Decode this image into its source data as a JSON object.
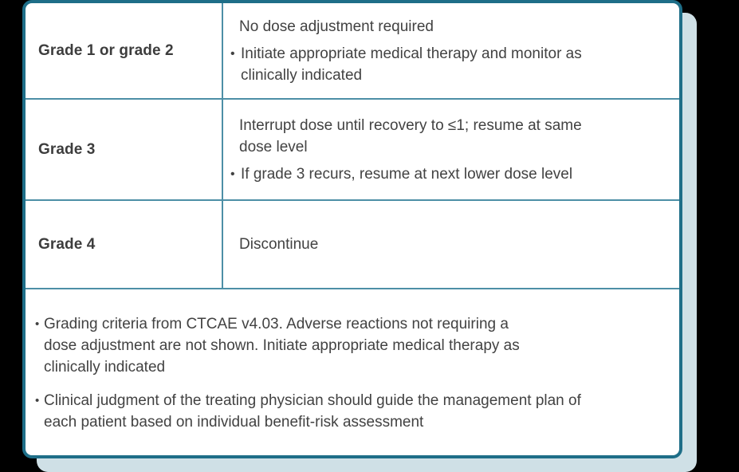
{
  "colors": {
    "background": "#000000",
    "card_background": "#ffffff",
    "card_border": "#1e6e88",
    "divider": "#4d8fa6",
    "shadow": "#cfe0e6",
    "text": "#424242",
    "label_text": "#3d3d3d"
  },
  "bullet_char": "•",
  "card": {
    "table": {
      "rows": [
        {
          "grade": "Grade 1 or grade 2",
          "lead": "No dose adjustment required",
          "bullets": [
            "Initiate appropriate medical therapy and monitor as\nclinically indicated"
          ]
        },
        {
          "grade": "Grade 3",
          "lead": "Interrupt dose until recovery to ≤1; resume at same\ndose level",
          "bullets": [
            "If grade 3 recurs, resume at next lower dose level"
          ]
        },
        {
          "grade": "Grade 4",
          "lead": "Discontinue",
          "bullets": []
        }
      ]
    },
    "footnotes": [
      "Grading criteria from CTCAE v4.03. Adverse reactions not requiring a\ndose adjustment are not shown. Initiate appropriate medical therapy as\nclinically indicated",
      "Clinical judgment of the treating physician should guide the management plan of\neach patient based on individual benefit-risk assessment"
    ]
  }
}
